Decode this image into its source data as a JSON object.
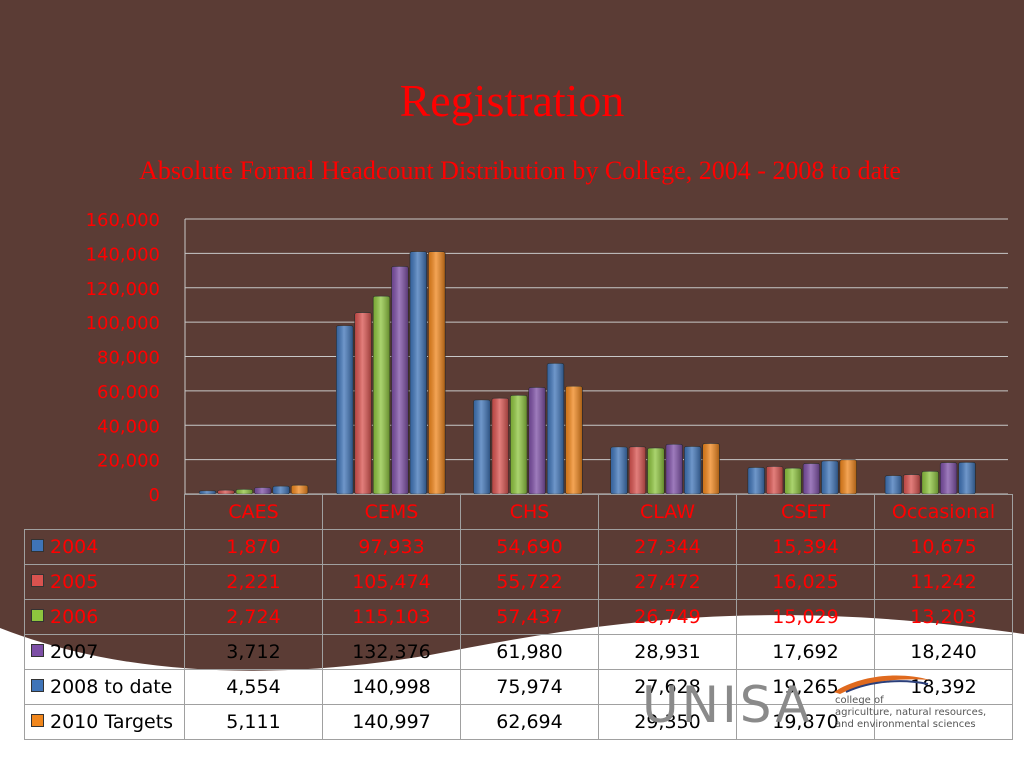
{
  "slide": {
    "title": "Registration",
    "subtitle": "Absolute Formal Headcount Distribution by College, 2004 - 2008 to date"
  },
  "colors": {
    "background": "#5b3c35",
    "text": "#ff0000",
    "grid": "#c8c8c8",
    "series": [
      "#3f74b8",
      "#d9534f",
      "#8ec53e",
      "#7d4fa6",
      "#3f74b8",
      "#f0861c"
    ]
  },
  "logo": {
    "name": "UNISA",
    "lines": [
      "college of",
      "agriculture, natural resources,",
      "and environmental sciences"
    ]
  },
  "chart_data": {
    "type": "bar",
    "title": "",
    "xlabel": "",
    "ylabel": "",
    "ylim": [
      0,
      160000
    ],
    "yticks": [
      "0",
      "20,000",
      "40,000",
      "60,000",
      "80,000",
      "100,000",
      "120,000",
      "140,000",
      "160,000"
    ],
    "grid": true,
    "legend": "data table, left",
    "categories": [
      "CAES",
      "CEMS",
      "CHS",
      "CLAW",
      "CSET",
      "Occasional"
    ],
    "series": [
      {
        "name": "2004",
        "values": [
          1870,
          97933,
          54690,
          27344,
          15394,
          10675
        ],
        "labels": [
          "1,870",
          "97,933",
          "54,690",
          "27,344",
          "15,394",
          "10,675"
        ]
      },
      {
        "name": "2005",
        "values": [
          2221,
          105474,
          55722,
          27472,
          16025,
          11242
        ],
        "labels": [
          "2,221",
          "105,474",
          "55,722",
          "27,472",
          "16,025",
          "11,242"
        ]
      },
      {
        "name": "2006",
        "values": [
          2724,
          115103,
          57437,
          26749,
          15029,
          13203
        ],
        "labels": [
          "2,724",
          "115,103",
          "57,437",
          "26,749",
          "15,029",
          "13,203"
        ]
      },
      {
        "name": "2007",
        "values": [
          3712,
          132376,
          61980,
          28931,
          17692,
          18240
        ],
        "labels": [
          "3,712",
          "132,376",
          "61,980",
          "28,931",
          "17,692",
          "18,240"
        ]
      },
      {
        "name": "2008 to date",
        "values": [
          4554,
          140998,
          75974,
          27628,
          19265,
          18392
        ],
        "labels": [
          "4,554",
          "140,998",
          "75,974",
          "27,628",
          "19,265",
          "18,392"
        ]
      },
      {
        "name": "2010 Targets",
        "values": [
          5111,
          140997,
          62694,
          29350,
          19870,
          null
        ],
        "labels": [
          "5,111",
          "140,997",
          "62,694",
          "29,350",
          "19,870",
          ""
        ]
      }
    ]
  }
}
